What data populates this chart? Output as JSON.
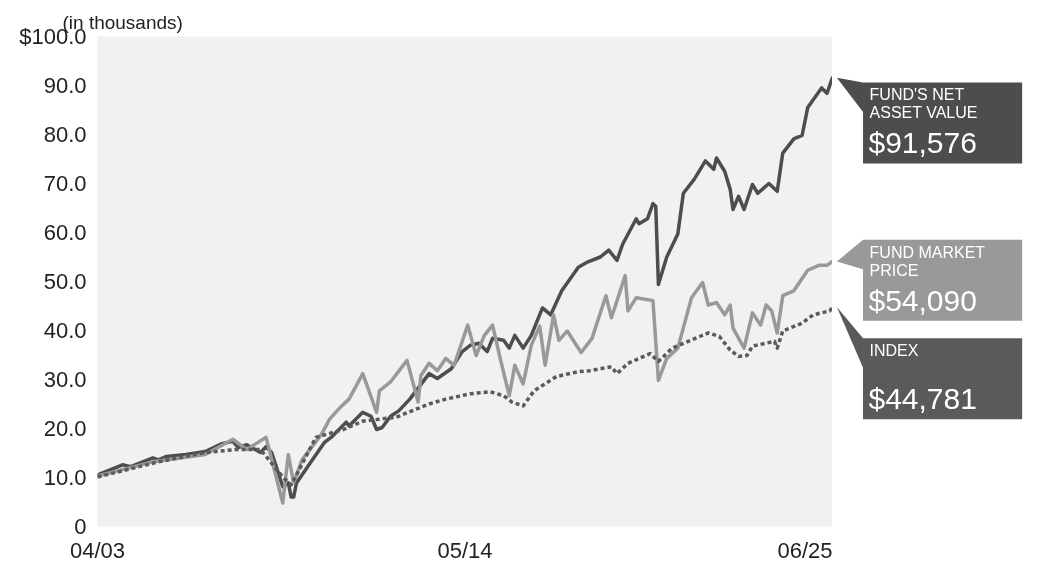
{
  "chart_data": {
    "type": "line",
    "ylabel": "(in thousands)",
    "legend": "right",
    "xlim": [
      "2003-04",
      "2025-06"
    ],
    "xticks": [
      {
        "value": "2003-04",
        "label": "04/03"
      },
      {
        "value": "2014-05",
        "label": "05/14"
      },
      {
        "value": "2025-06",
        "label": "06/25"
      }
    ],
    "ylim": [
      0,
      100
    ],
    "yticks": [
      0,
      {
        "value": 10,
        "label": "10.0"
      },
      {
        "value": 20,
        "label": "20.0"
      },
      {
        "value": 30,
        "label": "30.0"
      },
      {
        "value": 40,
        "label": "40.0"
      },
      {
        "value": 50,
        "label": "50.0"
      },
      {
        "value": 60,
        "label": "60.0"
      },
      {
        "value": 70,
        "label": "70.0"
      },
      {
        "value": 80,
        "label": "80.0"
      },
      {
        "value": 90,
        "label": "90.0"
      },
      {
        "value": 100,
        "label": "$100.0"
      }
    ],
    "series": [
      {
        "name": "FUND'S NET ASSET VALUE",
        "color": "#4d4d4d",
        "line_style": "solid",
        "x": [
          "2003-04",
          "2004-01",
          "2004-04",
          "2004-12",
          "2005-02",
          "2005-05",
          "2005-12",
          "2006-07",
          "2007-01",
          "2007-05",
          "2007-07",
          "2007-10",
          "2008-03",
          "2008-05",
          "2008-07",
          "2008-09",
          "2008-11",
          "2009-01",
          "2009-02",
          "2009-03",
          "2009-04",
          "2009-09",
          "2010-02",
          "2010-05",
          "2010-10",
          "2010-11",
          "2011-04",
          "2011-07",
          "2011-09",
          "2011-11",
          "2012-02",
          "2012-05",
          "2012-09",
          "2013-04",
          "2013-07",
          "2013-12",
          "2014-04",
          "2014-07",
          "2014-10",
          "2015-01",
          "2015-03",
          "2015-07",
          "2015-09",
          "2015-11",
          "2016-02",
          "2016-05",
          "2016-09",
          "2016-12",
          "2017-04",
          "2017-10",
          "2018-01",
          "2018-06",
          "2018-09",
          "2018-12",
          "2019-02",
          "2019-07",
          "2019-08",
          "2019-11",
          "2020-01",
          "2020-02",
          "2020-03",
          "2020-06",
          "2020-10",
          "2020-12",
          "2021-04",
          "2021-08",
          "2021-11",
          "2021-12",
          "2022-03",
          "2022-05",
          "2022-06",
          "2022-08",
          "2022-10",
          "2023-01",
          "2023-03",
          "2023-07",
          "2023-10",
          "2023-12",
          "2024-04",
          "2024-07",
          "2024-09",
          "2025-02",
          "2025-04",
          "2025-06"
        ],
        "values": [
          10.5,
          12.6,
          12.2,
          14.0,
          13.6,
          14.3,
          14.7,
          15.3,
          16.9,
          17.4,
          16.1,
          16.7,
          15.1,
          16.3,
          15.1,
          11.6,
          8.1,
          8.9,
          6.0,
          6.0,
          8.9,
          13.0,
          17.1,
          18.4,
          21.3,
          20.5,
          23.3,
          22.5,
          19.8,
          20.2,
          22.5,
          23.6,
          26.0,
          31.2,
          30.2,
          32.2,
          35.7,
          37.0,
          37.4,
          35.7,
          38.4,
          38.0,
          36.4,
          39.0,
          36.4,
          39.0,
          44.6,
          43.2,
          48.1,
          52.9,
          53.9,
          55.0,
          56.4,
          54.3,
          57.6,
          62.8,
          61.8,
          62.8,
          65.9,
          65.3,
          49.4,
          55.0,
          59.7,
          68.0,
          70.9,
          74.6,
          72.9,
          75.2,
          72.5,
          68.8,
          64.7,
          67.4,
          64.7,
          69.8,
          68.0,
          70.0,
          68.4,
          76.2,
          79.1,
          79.8,
          85.5,
          89.5,
          88.4,
          91.6
        ]
      },
      {
        "name": "FUND MARKET PRICE",
        "color": "#999999",
        "line_style": "solid",
        "x": [
          "2003-04",
          "2004-01",
          "2004-12",
          "2006-07",
          "2007-05",
          "2007-10",
          "2008-05",
          "2008-11",
          "2009-01",
          "2009-03",
          "2009-06",
          "2010-01",
          "2010-04",
          "2010-08",
          "2010-11",
          "2011-04",
          "2011-09",
          "2011-10",
          "2012-02",
          "2012-08",
          "2012-12",
          "2013-01",
          "2013-04",
          "2013-07",
          "2013-10",
          "2014-01",
          "2014-06",
          "2014-09",
          "2014-12",
          "2015-03",
          "2015-06",
          "2015-09",
          "2015-11",
          "2016-02",
          "2016-05",
          "2016-08",
          "2016-10",
          "2017-01",
          "2017-03",
          "2017-06",
          "2017-11",
          "2018-03",
          "2018-08",
          "2018-10",
          "2019-03",
          "2019-04",
          "2019-07",
          "2020-01",
          "2020-03",
          "2020-06",
          "2020-10",
          "2021-03",
          "2021-07",
          "2021-09",
          "2021-12",
          "2022-03",
          "2022-05",
          "2022-06",
          "2022-10",
          "2023-01",
          "2023-04",
          "2023-06",
          "2023-08",
          "2023-10",
          "2023-12",
          "2024-04",
          "2024-09",
          "2025-01",
          "2025-04",
          "2025-06"
        ],
        "values": [
          10.3,
          11.6,
          13.2,
          14.7,
          17.8,
          15.7,
          18.2,
          4.8,
          14.7,
          8.9,
          13.6,
          18.8,
          21.9,
          24.4,
          26.0,
          31.2,
          23.3,
          27.7,
          29.5,
          33.9,
          25.4,
          30.8,
          33.3,
          31.8,
          34.3,
          32.9,
          41.1,
          34.9,
          39.0,
          41.1,
          33.7,
          26.7,
          32.9,
          29.1,
          37.0,
          40.9,
          32.9,
          43.2,
          38.0,
          39.9,
          35.5,
          38.4,
          47.1,
          42.6,
          51.2,
          44.0,
          46.7,
          46.1,
          29.8,
          34.3,
          36.4,
          46.7,
          49.8,
          45.2,
          45.7,
          43.2,
          45.2,
          40.5,
          36.4,
          43.6,
          41.1,
          45.2,
          44.0,
          39.5,
          47.1,
          48.1,
          52.3,
          53.3,
          53.3,
          54.1
        ]
      },
      {
        "name": "INDEX",
        "color": "#5a5a5a",
        "line_style": "dotted",
        "x": [
          "2003-04",
          "2005-02",
          "2006-07",
          "2007-06",
          "2008-03",
          "2008-11",
          "2009-02",
          "2009-05",
          "2009-11",
          "2010-09",
          "2011-04",
          "2012-04",
          "2013-04",
          "2013-10",
          "2014-07",
          "2015-02",
          "2015-07",
          "2015-10",
          "2016-02",
          "2016-06",
          "2017-02",
          "2017-10",
          "2018-02",
          "2018-10",
          "2018-12",
          "2019-04",
          "2019-12",
          "2020-03",
          "2020-08",
          "2021-09",
          "2022-01",
          "2022-05",
          "2022-08",
          "2022-11",
          "2023-01",
          "2023-09",
          "2023-10",
          "2023-12",
          "2024-07",
          "2024-11",
          "2025-05",
          "2025-06"
        ],
        "values": [
          10.1,
          13.2,
          15.1,
          15.7,
          15.7,
          10.1,
          8.5,
          11.6,
          18.2,
          19.8,
          21.5,
          22.3,
          25.0,
          26.0,
          27.1,
          27.5,
          26.7,
          25.4,
          24.6,
          27.7,
          30.6,
          31.6,
          31.8,
          32.6,
          31.2,
          33.3,
          35.3,
          33.7,
          36.4,
          39.5,
          38.8,
          36.0,
          34.7,
          34.9,
          36.8,
          37.8,
          36.4,
          39.9,
          41.5,
          43.2,
          44.0,
          44.8
        ]
      }
    ],
    "annotations": [
      {
        "text": "$91,576",
        "x": "2025-06",
        "y": 91.576
      },
      {
        "text": "$54,090",
        "x": "2025-06",
        "y": 54.09
      },
      {
        "text": "$44,781",
        "x": "2025-06",
        "y": 44.781
      }
    ]
  }
}
